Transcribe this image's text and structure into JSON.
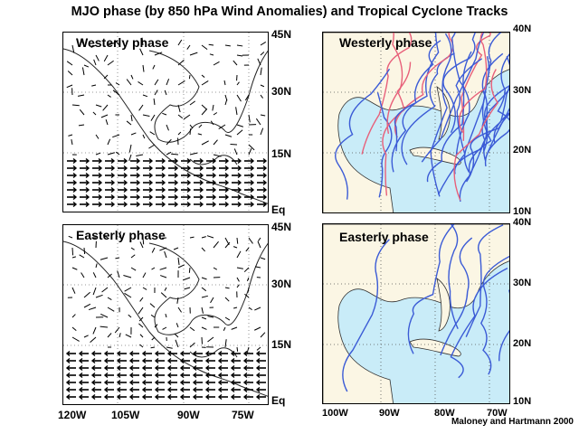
{
  "title": "MJO phase (by 850 hPa Wind Anomalies) and Tropical Cyclone Tracks",
  "panels": {
    "wind_westerly": "Westerly phase",
    "wind_easterly": "Easterly phase",
    "track_westerly": "Westerly phase",
    "track_easterly": "Easterly phase"
  },
  "wind_lat_labels": [
    "45N",
    "30N",
    "15N",
    "Eq"
  ],
  "wind_lon_labels": [
    "120W",
    "105W",
    "90W",
    "75W"
  ],
  "track_lat_labels": [
    "40N",
    "30N",
    "20N",
    "10N"
  ],
  "track_lon_labels": [
    "100W",
    "90W",
    "80W",
    "70W"
  ],
  "credit": "Maloney and Hartmann 2000",
  "colors": {
    "ocean": "#c9ecf8",
    "land": "#fbf6e4",
    "track_blue": "#3b5bd6",
    "track_red": "#e8607a"
  }
}
